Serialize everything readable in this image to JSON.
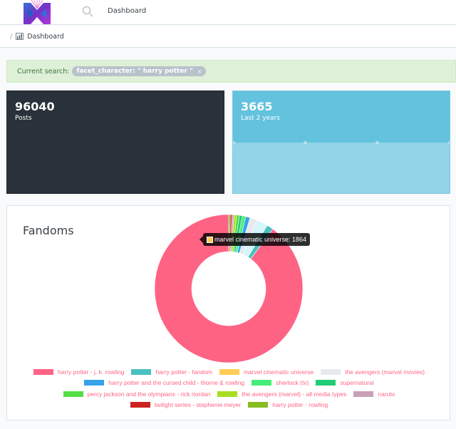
{
  "header": {
    "logo_alt": "app-logo",
    "nav_label": "Dashboard"
  },
  "breadcrumb": {
    "separator": "/",
    "current": "Dashboard"
  },
  "search": {
    "label": "Current search:",
    "chip": "facet_character: \" harry potter \"",
    "chip_close": "×"
  },
  "stats": [
    {
      "value": "96040",
      "label": "Posts",
      "bg": "#29323a"
    },
    {
      "value": "3665",
      "label": "Last 2 years",
      "bg": "#63c2de"
    }
  ],
  "fandoms": {
    "title": "Fandoms",
    "tooltip": {
      "text": "marvel cinematic universe: 1864",
      "swatch": "#ffcd56"
    }
  },
  "chart_data": {
    "type": "pie",
    "variant": "doughnut",
    "title": "Fandoms",
    "legend_position": "bottom",
    "categories": [
      "harry potter - j. k. rowling",
      "harry potter - fandom",
      "marvel cinematic universe",
      "the avengers (marvel movies)",
      "harry potter and the cursed child - thorne & rowling",
      "sherlock (tv)",
      "supernatural",
      "percy jackson and the olympians - rick riordan",
      "the avengers (marvel) - all media types",
      "naruto",
      "twilight series - stephenie meyer",
      "harry potter - rowling"
    ],
    "values": [
      66500,
      1050,
      1864,
      1150,
      700,
      550,
      480,
      450,
      420,
      300,
      280,
      260
    ],
    "colors": [
      "#ff6384",
      "#4bc0c0",
      "#ffcd56",
      "#e7e9ed",
      "#36a2eb",
      "#44ee77",
      "#22cc77",
      "#55dd44",
      "#aadd22",
      "#c9a0b8",
      "#cc2222",
      "#88bb22"
    ],
    "hovered": {
      "label": "marvel cinematic universe",
      "value": 1864
    }
  }
}
